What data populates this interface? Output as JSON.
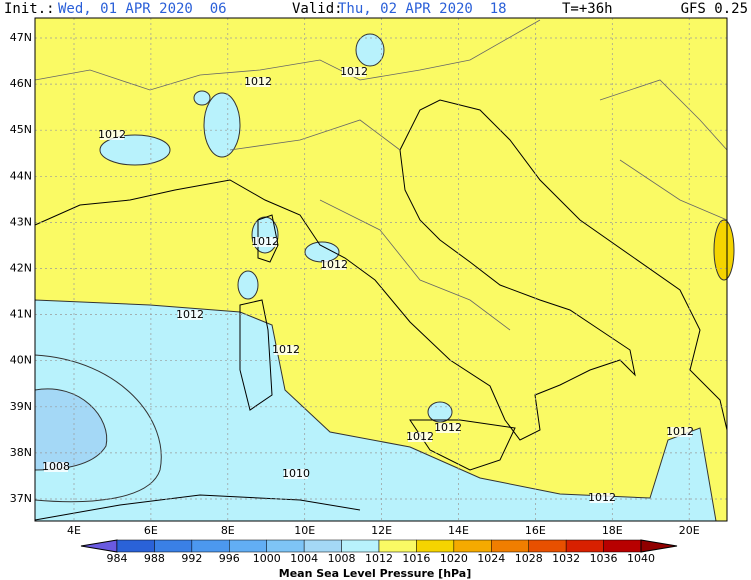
{
  "header": {
    "init_label": "Init.:",
    "init_value": "Wed, 01 APR 2020  06",
    "valid_label": "Valid:",
    "valid_value": "Thu, 02 APR 2020  18",
    "lead": "T=+36h",
    "model": "GFS 0.25"
  },
  "map": {
    "lat_labels": [
      "47N",
      "46N",
      "45N",
      "44N",
      "43N",
      "42N",
      "41N",
      "40N",
      "39N",
      "38N",
      "37N"
    ],
    "lon_labels": [
      "4E",
      "6E",
      "8E",
      "10E",
      "12E",
      "14E",
      "16E",
      "18E",
      "20E"
    ],
    "contour_labels": [
      "1012",
      "1012",
      "1012",
      "1012",
      "1012",
      "1012",
      "1012",
      "1012",
      "1012",
      "1012",
      "1012",
      "1008",
      "1010"
    ]
  },
  "colorbar": {
    "title": "Mean Sea Level Pressure [hPa]",
    "labels": [
      "984",
      "988",
      "992",
      "996",
      "1000",
      "1004",
      "1008",
      "1012",
      "1016",
      "1020",
      "1024",
      "1028",
      "1032",
      "1036",
      "1040"
    ],
    "colors": [
      "#6a5ae0",
      "#2a62d8",
      "#3a80e6",
      "#4c98ef",
      "#62aef4",
      "#7ec4f6",
      "#a4d8f6",
      "#b8f2fc",
      "#fafa64",
      "#f5d400",
      "#f5aa00",
      "#f07e00",
      "#e85000",
      "#d82000",
      "#b80000",
      "#900000"
    ]
  }
}
